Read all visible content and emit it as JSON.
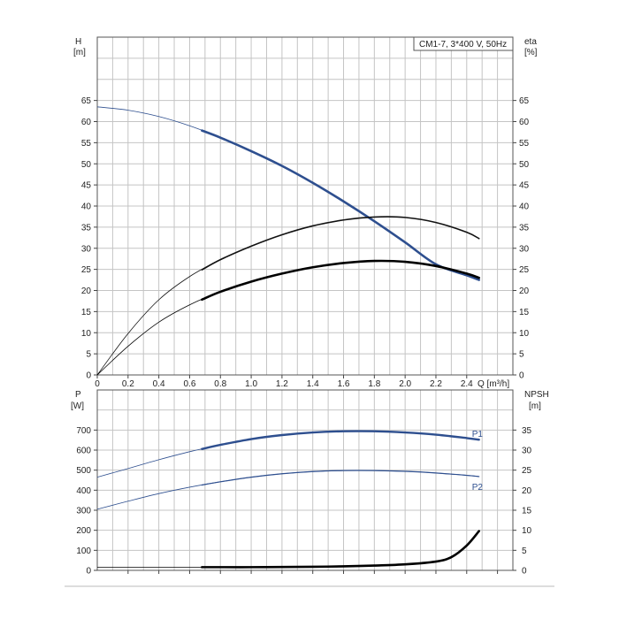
{
  "chart_data": [
    {
      "type": "line",
      "title": "CM1-7, 3*400 V, 50Hz",
      "ylabel": "H",
      "ylabel_unit": "[m]",
      "y2label": "eta",
      "y2label_unit": "[%]",
      "xlabel": "Q [m³/h]",
      "xlim": [
        0,
        2.7
      ],
      "ylim": [
        0,
        80
      ],
      "x_ticks": [
        "0",
        "0.2",
        "0.4",
        "0.6",
        "0.8",
        "1.0",
        "1.2",
        "1.4",
        "1.6",
        "1.8",
        "2.0",
        "2.2",
        "2.4"
      ],
      "y_ticks": [
        "0",
        "5",
        "10",
        "15",
        "20",
        "25",
        "30",
        "35",
        "40",
        "45",
        "50",
        "55",
        "60",
        "65"
      ],
      "y2_ticks": [
        "0",
        "5",
        "10",
        "15",
        "20",
        "25",
        "30",
        "35",
        "40",
        "45",
        "50",
        "55",
        "60",
        "65"
      ],
      "grid": true,
      "series": [
        {
          "color": "#2e4f8f",
          "duty_range": [
            0.68,
            2.48
          ],
          "x": [
            0.0,
            0.2,
            0.4,
            0.6,
            0.8,
            1.0,
            1.2,
            1.4,
            1.6,
            1.8,
            2.0,
            2.2,
            2.4,
            2.48
          ],
          "y": [
            63.5,
            62.7,
            61.2,
            59.0,
            56.2,
            53.0,
            49.5,
            45.5,
            41.1,
            36.4,
            31.4,
            26.2,
            23.6,
            22.5
          ]
        },
        {
          "color": "#111111",
          "duty_range": [
            0.68,
            2.48
          ],
          "x": [
            0.0,
            0.2,
            0.4,
            0.6,
            0.8,
            1.0,
            1.2,
            1.4,
            1.6,
            1.8,
            2.0,
            2.2,
            2.4,
            2.48
          ],
          "y": [
            0,
            9.8,
            17.8,
            23.3,
            27.3,
            30.5,
            33.2,
            35.3,
            36.7,
            37.4,
            37.3,
            36.1,
            33.8,
            32.3
          ]
        },
        {
          "color": "#000000",
          "duty_range": [
            0.68,
            2.48
          ],
          "x": [
            0.0,
            0.2,
            0.4,
            0.6,
            0.8,
            1.0,
            1.2,
            1.4,
            1.6,
            1.8,
            2.0,
            2.2,
            2.4,
            2.48
          ],
          "y": [
            0,
            6.8,
            12.5,
            16.6,
            19.7,
            22.1,
            24.0,
            25.5,
            26.5,
            27.0,
            26.8,
            25.8,
            24.0,
            23.0
          ]
        }
      ]
    },
    {
      "type": "line",
      "ylabel": "P",
      "ylabel_unit": "[W]",
      "y2label": "NPSH",
      "y2label_unit": "[m]",
      "xlim": [
        0,
        2.7
      ],
      "ylim": [
        0,
        900
      ],
      "y2lim": [
        0,
        45
      ],
      "y_ticks": [
        "0",
        "100",
        "200",
        "300",
        "400",
        "500",
        "600",
        "700"
      ],
      "y2_ticks": [
        "0",
        "5",
        "10",
        "15",
        "20",
        "25",
        "30",
        "35"
      ],
      "grid": true,
      "series": [
        {
          "name": "P1",
          "color": "#2e4f8f",
          "duty_range": [
            0.68,
            2.48
          ],
          "x": [
            0.0,
            0.2,
            0.4,
            0.6,
            0.8,
            1.0,
            1.2,
            1.4,
            1.6,
            1.8,
            2.0,
            2.2,
            2.4,
            2.48
          ],
          "y": [
            465,
            508,
            552,
            592,
            626,
            655,
            675,
            688,
            694,
            694,
            688,
            677,
            660,
            652
          ]
        },
        {
          "name": "P2",
          "color": "#2e4f8f",
          "duty_range": [
            0.68,
            2.48
          ],
          "x": [
            0.0,
            0.2,
            0.4,
            0.6,
            0.8,
            1.0,
            1.2,
            1.4,
            1.6,
            1.8,
            2.0,
            2.2,
            2.4,
            2.48
          ],
          "y": [
            305,
            345,
            383,
            415,
            442,
            465,
            482,
            493,
            498,
            498,
            494,
            486,
            474,
            468
          ]
        },
        {
          "name": "NPSH",
          "color": "#000000",
          "axis": "right",
          "duty_range": [
            0.68,
            2.48
          ],
          "x": [
            0.0,
            0.2,
            0.4,
            0.6,
            0.8,
            1.0,
            1.2,
            1.4,
            1.6,
            1.8,
            2.0,
            2.2,
            2.3,
            2.4,
            2.48
          ],
          "y": [
            0.8,
            0.8,
            0.8,
            0.8,
            0.8,
            0.8,
            0.85,
            0.9,
            1.0,
            1.2,
            1.5,
            2.2,
            3.3,
            6.2,
            9.8
          ]
        }
      ]
    }
  ]
}
